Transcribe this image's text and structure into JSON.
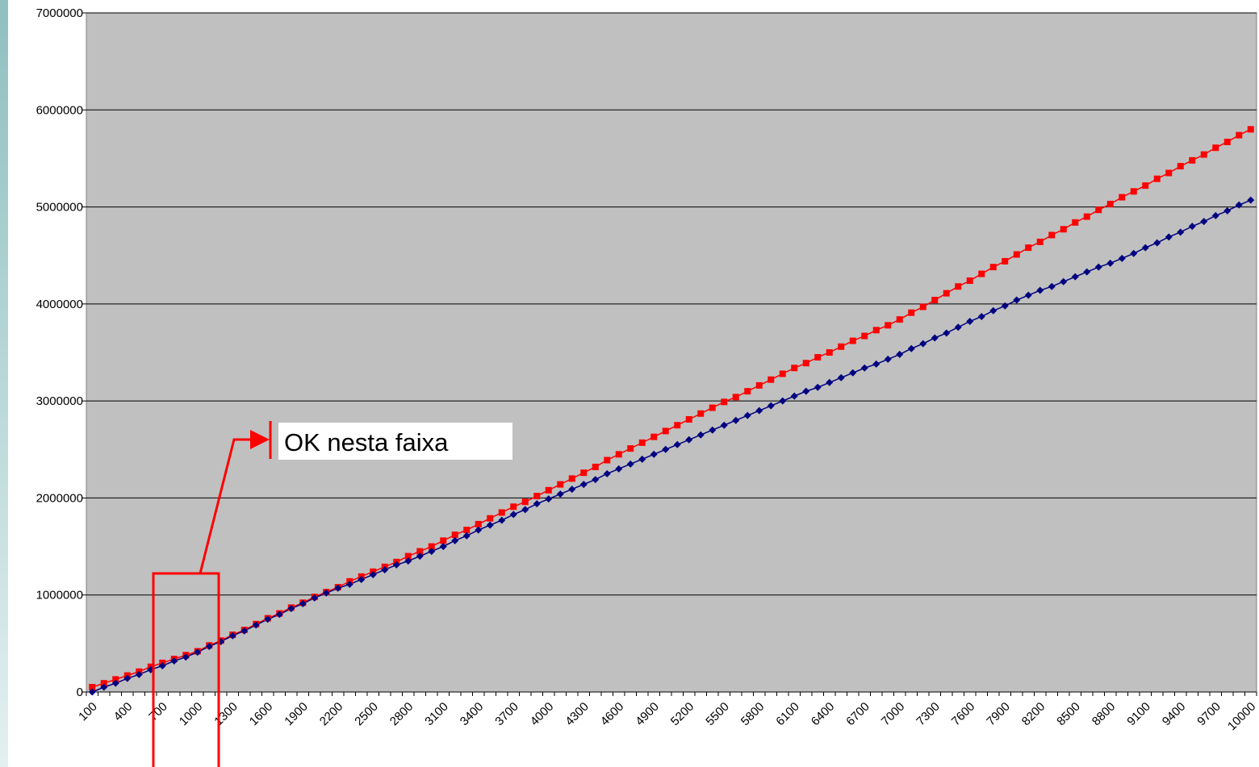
{
  "chart_data": {
    "type": "line",
    "categories": [
      "100",
      null,
      null,
      "400",
      null,
      null,
      "700",
      null,
      null,
      "1000",
      null,
      null,
      "1300",
      null,
      null,
      "1600",
      null,
      null,
      "1900",
      null,
      null,
      "2200",
      null,
      null,
      "2500",
      null,
      null,
      "2800",
      null,
      null,
      "3100",
      null,
      null,
      "3400",
      null,
      null,
      "3700",
      null,
      null,
      "4000",
      null,
      null,
      "4300",
      null,
      null,
      "4600",
      null,
      null,
      "4900",
      null,
      null,
      "5200",
      null,
      null,
      "5500",
      null,
      null,
      "5800",
      null,
      null,
      "6100",
      null,
      null,
      "6400",
      null,
      null,
      "6700",
      null,
      null,
      "7000",
      null,
      null,
      "7300",
      null,
      null,
      "7600",
      null,
      null,
      "7900",
      null,
      null,
      "8200",
      null,
      null,
      "8500",
      null,
      null,
      "8800",
      null,
      null,
      "9100",
      null,
      null,
      "9400",
      null,
      null,
      "9700",
      null,
      null,
      "10000"
    ],
    "series": [
      {
        "color": "#ff0000",
        "marker": "square",
        "values": [
          50000,
          90000,
          130000,
          170000,
          210000,
          260000,
          300000,
          340000,
          380000,
          420000,
          480000,
          530000,
          590000,
          640000,
          700000,
          760000,
          810000,
          870000,
          920000,
          980000,
          1030000,
          1080000,
          1140000,
          1190000,
          1240000,
          1290000,
          1340000,
          1400000,
          1450000,
          1500000,
          1560000,
          1620000,
          1670000,
          1730000,
          1790000,
          1850000,
          1910000,
          1960000,
          2020000,
          2080000,
          2140000,
          2200000,
          2260000,
          2320000,
          2390000,
          2450000,
          2510000,
          2570000,
          2630000,
          2690000,
          2750000,
          2810000,
          2870000,
          2930000,
          2990000,
          3040000,
          3100000,
          3160000,
          3220000,
          3280000,
          3340000,
          3390000,
          3450000,
          3500000,
          3560000,
          3620000,
          3670000,
          3730000,
          3780000,
          3840000,
          3910000,
          3970000,
          4040000,
          4110000,
          4180000,
          4240000,
          4310000,
          4380000,
          4440000,
          4510000,
          4580000,
          4640000,
          4710000,
          4770000,
          4840000,
          4900000,
          4970000,
          5030000,
          5100000,
          5160000,
          5220000,
          5290000,
          5350000,
          5420000,
          5480000,
          5540000,
          5610000,
          5670000,
          5740000,
          5800000
        ]
      },
      {
        "color": "#000080",
        "marker": "diamond",
        "values": [
          0,
          50000,
          90000,
          140000,
          180000,
          230000,
          270000,
          320000,
          360000,
          410000,
          470000,
          520000,
          580000,
          630000,
          690000,
          750000,
          800000,
          860000,
          910000,
          970000,
          1020000,
          1070000,
          1110000,
          1160000,
          1210000,
          1260000,
          1310000,
          1350000,
          1400000,
          1450000,
          1500000,
          1560000,
          1610000,
          1670000,
          1720000,
          1770000,
          1830000,
          1880000,
          1940000,
          1990000,
          2040000,
          2090000,
          2140000,
          2190000,
          2250000,
          2300000,
          2350000,
          2400000,
          2450000,
          2500000,
          2550000,
          2600000,
          2650000,
          2700000,
          2750000,
          2800000,
          2850000,
          2900000,
          2950000,
          3000000,
          3050000,
          3100000,
          3140000,
          3190000,
          3240000,
          3290000,
          3340000,
          3380000,
          3430000,
          3480000,
          3540000,
          3590000,
          3650000,
          3700000,
          3760000,
          3820000,
          3870000,
          3930000,
          3980000,
          4040000,
          4090000,
          4140000,
          4180000,
          4230000,
          4280000,
          4330000,
          4380000,
          4420000,
          4470000,
          4520000,
          4580000,
          4630000,
          4690000,
          4740000,
          4800000,
          4850000,
          4910000,
          4960000,
          5020000,
          5070000
        ]
      }
    ],
    "ylim": [
      0,
      7000000
    ],
    "yticks": [
      0,
      1000000,
      2000000,
      3000000,
      4000000,
      5000000,
      6000000,
      7000000
    ],
    "grid": true,
    "plot_background": "#c0c0c0",
    "annotation": "OK nesta faixa"
  }
}
